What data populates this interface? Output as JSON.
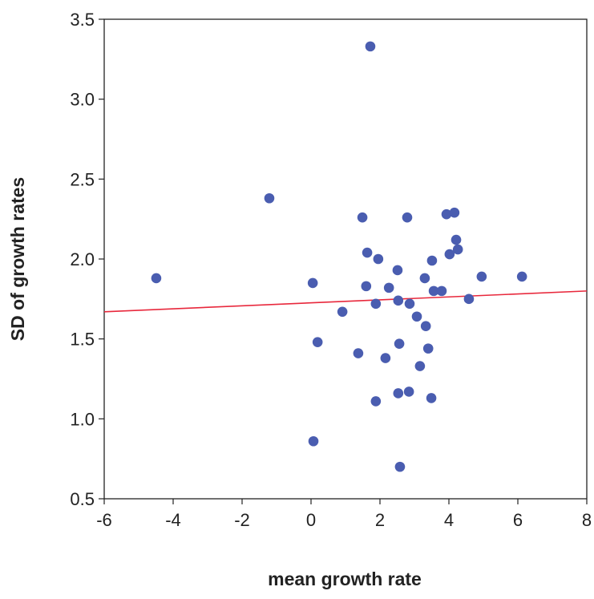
{
  "chart_data": {
    "type": "scatter",
    "x_label": "mean growth rate",
    "y_label": "SD of growth rates",
    "xlim": [
      -6,
      8
    ],
    "xticks": [
      -6,
      -4,
      -2,
      0,
      2,
      4,
      6,
      8
    ],
    "ylim": [
      0.5,
      3.5
    ],
    "yticks": [
      0.5,
      {
        "value": 1,
        "label": "1.0"
      },
      1.5,
      {
        "value": 2,
        "label": "2.0"
      },
      2.5,
      {
        "value": 3,
        "label": "3.0"
      },
      3.5
    ],
    "color": "#4a5db0",
    "x": [
      1.72,
      -1.21,
      -4.49,
      0.05,
      0.19,
      0.07,
      0.91,
      1.37,
      1.49,
      1.63,
      1.6,
      1.95,
      1.88,
      1.88,
      2.16,
      2.26,
      2.51,
      2.53,
      2.56,
      2.53,
      2.58,
      2.79,
      2.86,
      2.84,
      3.07,
      3.16,
      3.3,
      3.33,
      3.4,
      3.49,
      3.51,
      3.56,
      3.79,
      3.93,
      4.02,
      4.16,
      4.21,
      4.26,
      4.58,
      4.95,
      6.12
    ],
    "y": [
      3.33,
      2.38,
      1.88,
      1.85,
      1.48,
      0.86,
      1.67,
      1.41,
      2.26,
      2.04,
      1.83,
      2.0,
      1.72,
      1.11,
      1.38,
      1.82,
      1.93,
      1.74,
      1.47,
      1.16,
      0.7,
      2.26,
      1.72,
      1.17,
      1.64,
      1.33,
      1.88,
      1.58,
      1.44,
      1.13,
      1.99,
      1.8,
      1.8,
      2.28,
      2.03,
      2.29,
      2.12,
      2.06,
      1.75,
      1.89,
      1.89
    ],
    "fit_line": {
      "x": [
        -6,
        8
      ],
      "y": [
        1.67,
        1.8
      ],
      "color": "#e8283c"
    }
  }
}
